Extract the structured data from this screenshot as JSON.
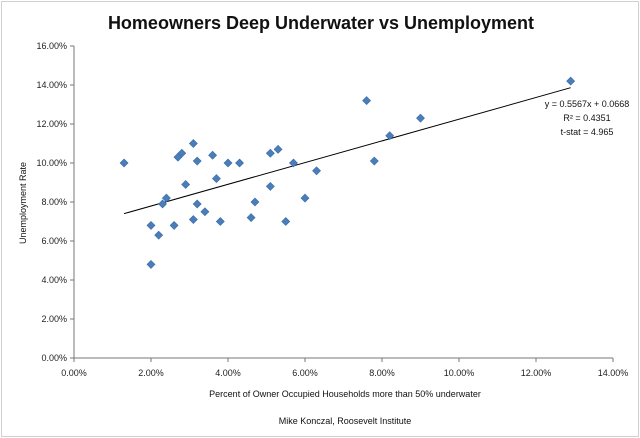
{
  "chart_data": {
    "type": "scatter",
    "title": "Homeowners Deep Underwater vs Unemployment",
    "xlabel": "Percent of  Owner Occupied Households more than 50% underwater",
    "ylabel": "Unemployment Rate",
    "xlim": [
      0,
      0.14
    ],
    "ylim": [
      0,
      0.16
    ],
    "x_ticks": [
      0,
      0.02,
      0.04,
      0.06,
      0.08,
      0.1,
      0.12,
      0.14
    ],
    "y_ticks": [
      0,
      0.02,
      0.04,
      0.06,
      0.08,
      0.1,
      0.12,
      0.14,
      0.16
    ],
    "x_tick_labels": [
      "0.00%",
      "2.00%",
      "4.00%",
      "6.00%",
      "8.00%",
      "10.00%",
      "12.00%",
      "14.00%"
    ],
    "y_tick_labels": [
      "0.00%",
      "2.00%",
      "4.00%",
      "6.00%",
      "8.00%",
      "10.00%",
      "12.00%",
      "14.00%",
      "16.00%"
    ],
    "grid": false,
    "legend": "none",
    "marker_color": "#4a7ebb",
    "trendline": {
      "slope": 0.5567,
      "intercept": 0.0668,
      "x_range": [
        0.013,
        0.129
      ]
    },
    "annotations": [
      "y = 0.5567x + 0.0668",
      "R² = 0.4351",
      "t-stat = 4.965"
    ],
    "credit": "Mike Konczal, Roosevelt Institute",
    "series": [
      {
        "points": [
          [
            0.013,
            0.1
          ],
          [
            0.02,
            0.048
          ],
          [
            0.02,
            0.068
          ],
          [
            0.022,
            0.063
          ],
          [
            0.023,
            0.079
          ],
          [
            0.024,
            0.082
          ],
          [
            0.026,
            0.068
          ],
          [
            0.027,
            0.103
          ],
          [
            0.028,
            0.105
          ],
          [
            0.029,
            0.089
          ],
          [
            0.031,
            0.11
          ],
          [
            0.031,
            0.071
          ],
          [
            0.032,
            0.079
          ],
          [
            0.032,
            0.101
          ],
          [
            0.034,
            0.075
          ],
          [
            0.036,
            0.104
          ],
          [
            0.037,
            0.092
          ],
          [
            0.038,
            0.07
          ],
          [
            0.04,
            0.1
          ],
          [
            0.043,
            0.1
          ],
          [
            0.046,
            0.072
          ],
          [
            0.047,
            0.08
          ],
          [
            0.051,
            0.105
          ],
          [
            0.051,
            0.088
          ],
          [
            0.053,
            0.107
          ],
          [
            0.055,
            0.07
          ],
          [
            0.057,
            0.1
          ],
          [
            0.06,
            0.082
          ],
          [
            0.063,
            0.096
          ],
          [
            0.076,
            0.132
          ],
          [
            0.078,
            0.101
          ],
          [
            0.082,
            0.114
          ],
          [
            0.09,
            0.123
          ],
          [
            0.129,
            0.142
          ]
        ]
      }
    ]
  }
}
